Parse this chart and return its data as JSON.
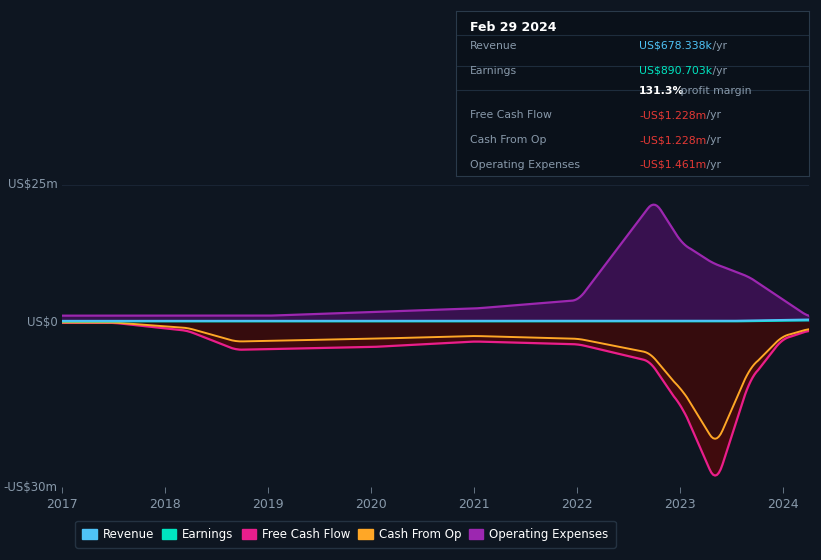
{
  "bg_color": "#0e1621",
  "plot_bg_color": "#0e1621",
  "ylabel_top": "US$25m",
  "ylabel_mid": "US$0",
  "ylabel_bot": "-US$30m",
  "x_years": [
    2017,
    2018,
    2019,
    2020,
    2021,
    2022,
    2023,
    2024
  ],
  "ylim": [
    -30,
    25
  ],
  "legend_items": [
    {
      "label": "Revenue",
      "color": "#4fc3f7"
    },
    {
      "label": "Earnings",
      "color": "#00e5c0"
    },
    {
      "label": "Free Cash Flow",
      "color": "#e91e8c"
    },
    {
      "label": "Cash From Op",
      "color": "#ffa726"
    },
    {
      "label": "Operating Expenses",
      "color": "#9c27b0"
    }
  ],
  "tooltip": {
    "date": "Feb 29 2024",
    "rows": [
      {
        "label": "Revenue",
        "value": "US$678.338k",
        "unit": " /yr",
        "value_color": "#4fc3f7"
      },
      {
        "label": "Earnings",
        "value": "US$890.703k",
        "unit": " /yr",
        "value_color": "#00e5c0"
      },
      {
        "label": "",
        "value": "131.3%",
        "unit": " profit margin",
        "value_color": "#ffffff",
        "bold_value": true
      },
      {
        "label": "Free Cash Flow",
        "value": "-US$1.228m",
        "unit": " /yr",
        "value_color": "#e53935"
      },
      {
        "label": "Cash From Op",
        "value": "-US$1.228m",
        "unit": " /yr",
        "value_color": "#e53935"
      },
      {
        "label": "Operating Expenses",
        "value": "-US$1.461m",
        "unit": " /yr",
        "value_color": "#e53935"
      }
    ]
  },
  "revenue_color": "#4fc3f7",
  "earnings_color": "#00e5c0",
  "fcf_color": "#e91e8c",
  "cashfromop_color": "#ffa726",
  "opex_color": "#9c27b0",
  "fill_opex_color": "#3d1155",
  "fill_neg_color": "#4a0a0a",
  "grid_color": "#1a2535"
}
